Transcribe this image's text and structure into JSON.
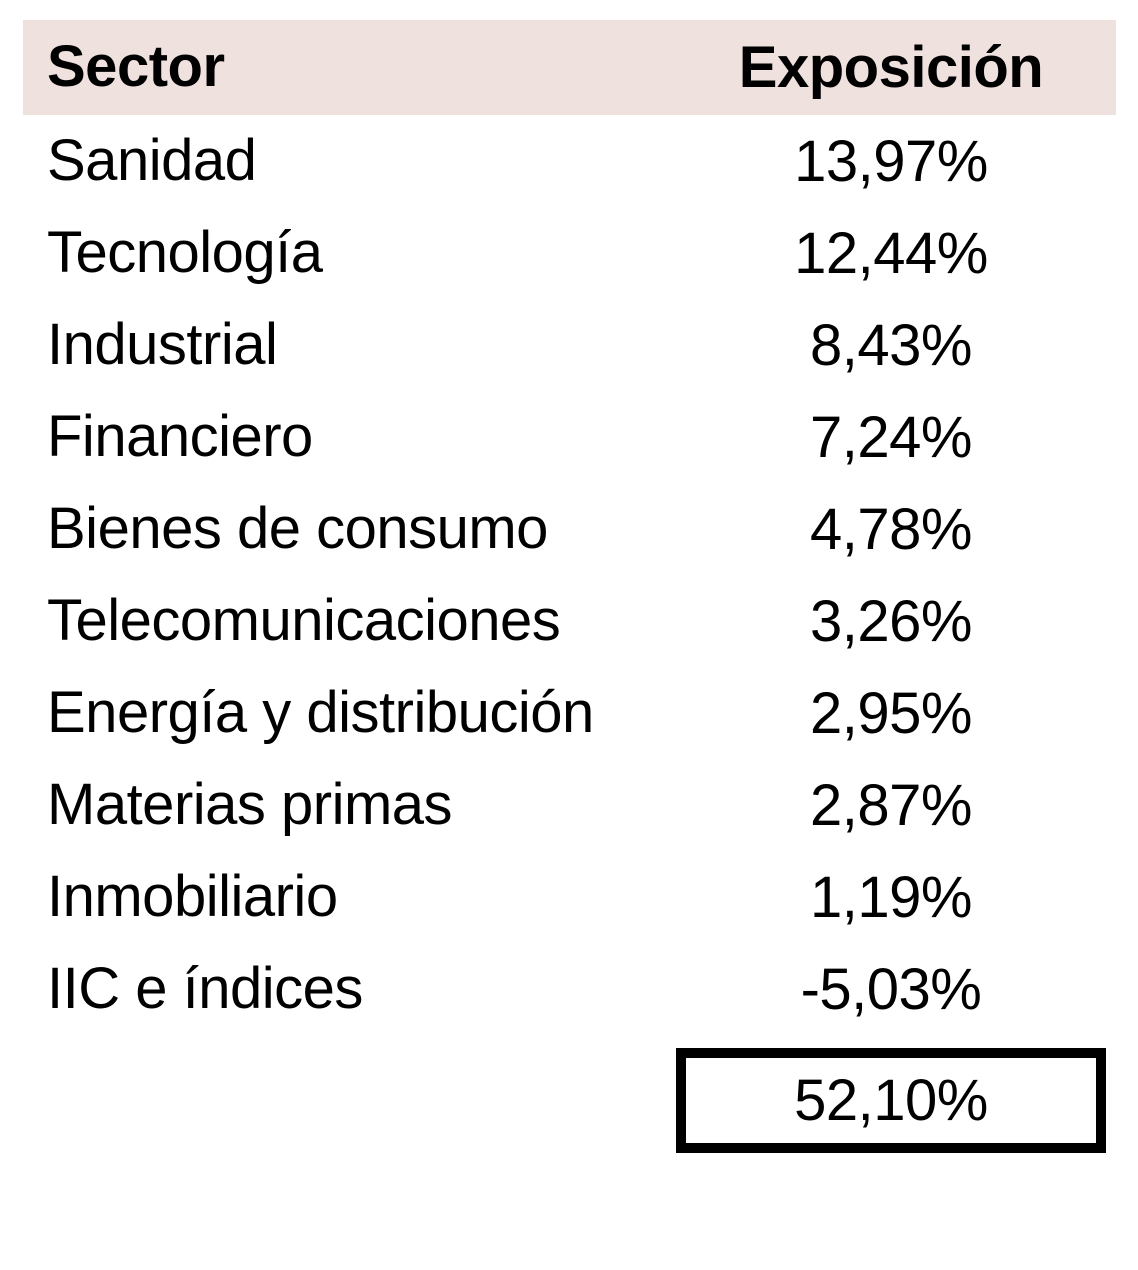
{
  "table": {
    "header": {
      "sector": "Sector",
      "exposure": "Exposición"
    },
    "rows": [
      {
        "sector": "Sanidad",
        "exposure": "13,97%"
      },
      {
        "sector": "Tecnología",
        "exposure": "12,44%"
      },
      {
        "sector": "Industrial",
        "exposure": "8,43%"
      },
      {
        "sector": "Financiero",
        "exposure": "7,24%"
      },
      {
        "sector": "Bienes de consumo",
        "exposure": "4,78%"
      },
      {
        "sector": "Telecomunicaciones",
        "exposure": "3,26%"
      },
      {
        "sector": "Energía y distribución",
        "exposure": "2,95%"
      },
      {
        "sector": "Materias primas",
        "exposure": "2,87%"
      },
      {
        "sector": "Inmobiliario",
        "exposure": "1,19%"
      },
      {
        "sector": "IIC e índices",
        "exposure": "-5,03%"
      }
    ],
    "total": "52,10%"
  },
  "colors": {
    "header_bg": "#efe1de",
    "text": "#000000",
    "total_border": "#000000"
  },
  "chart_data": {
    "type": "table",
    "title": "",
    "columns": [
      "Sector",
      "Exposición"
    ],
    "categories": [
      "Sanidad",
      "Tecnología",
      "Industrial",
      "Financiero",
      "Bienes de consumo",
      "Telecomunicaciones",
      "Energía y distribución",
      "Materias primas",
      "Inmobiliario",
      "IIC e índices"
    ],
    "values": [
      13.97,
      12.44,
      8.43,
      7.24,
      4.78,
      3.26,
      2.95,
      2.87,
      1.19,
      -5.03
    ],
    "total": 52.1,
    "value_format": "percent, comma decimal separator",
    "layout": "header row shaded pink; sector column left-aligned; exposure column centered; total in black-outlined box bottom-right"
  }
}
